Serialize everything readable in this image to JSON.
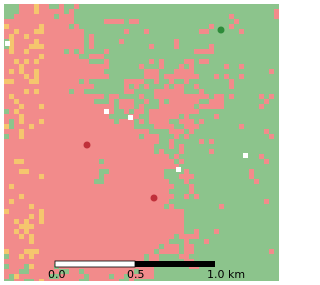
{
  "scale_bar": {
    "labels": [
      "0.0",
      "0.5",
      "1.0 km"
    ]
  }
}
